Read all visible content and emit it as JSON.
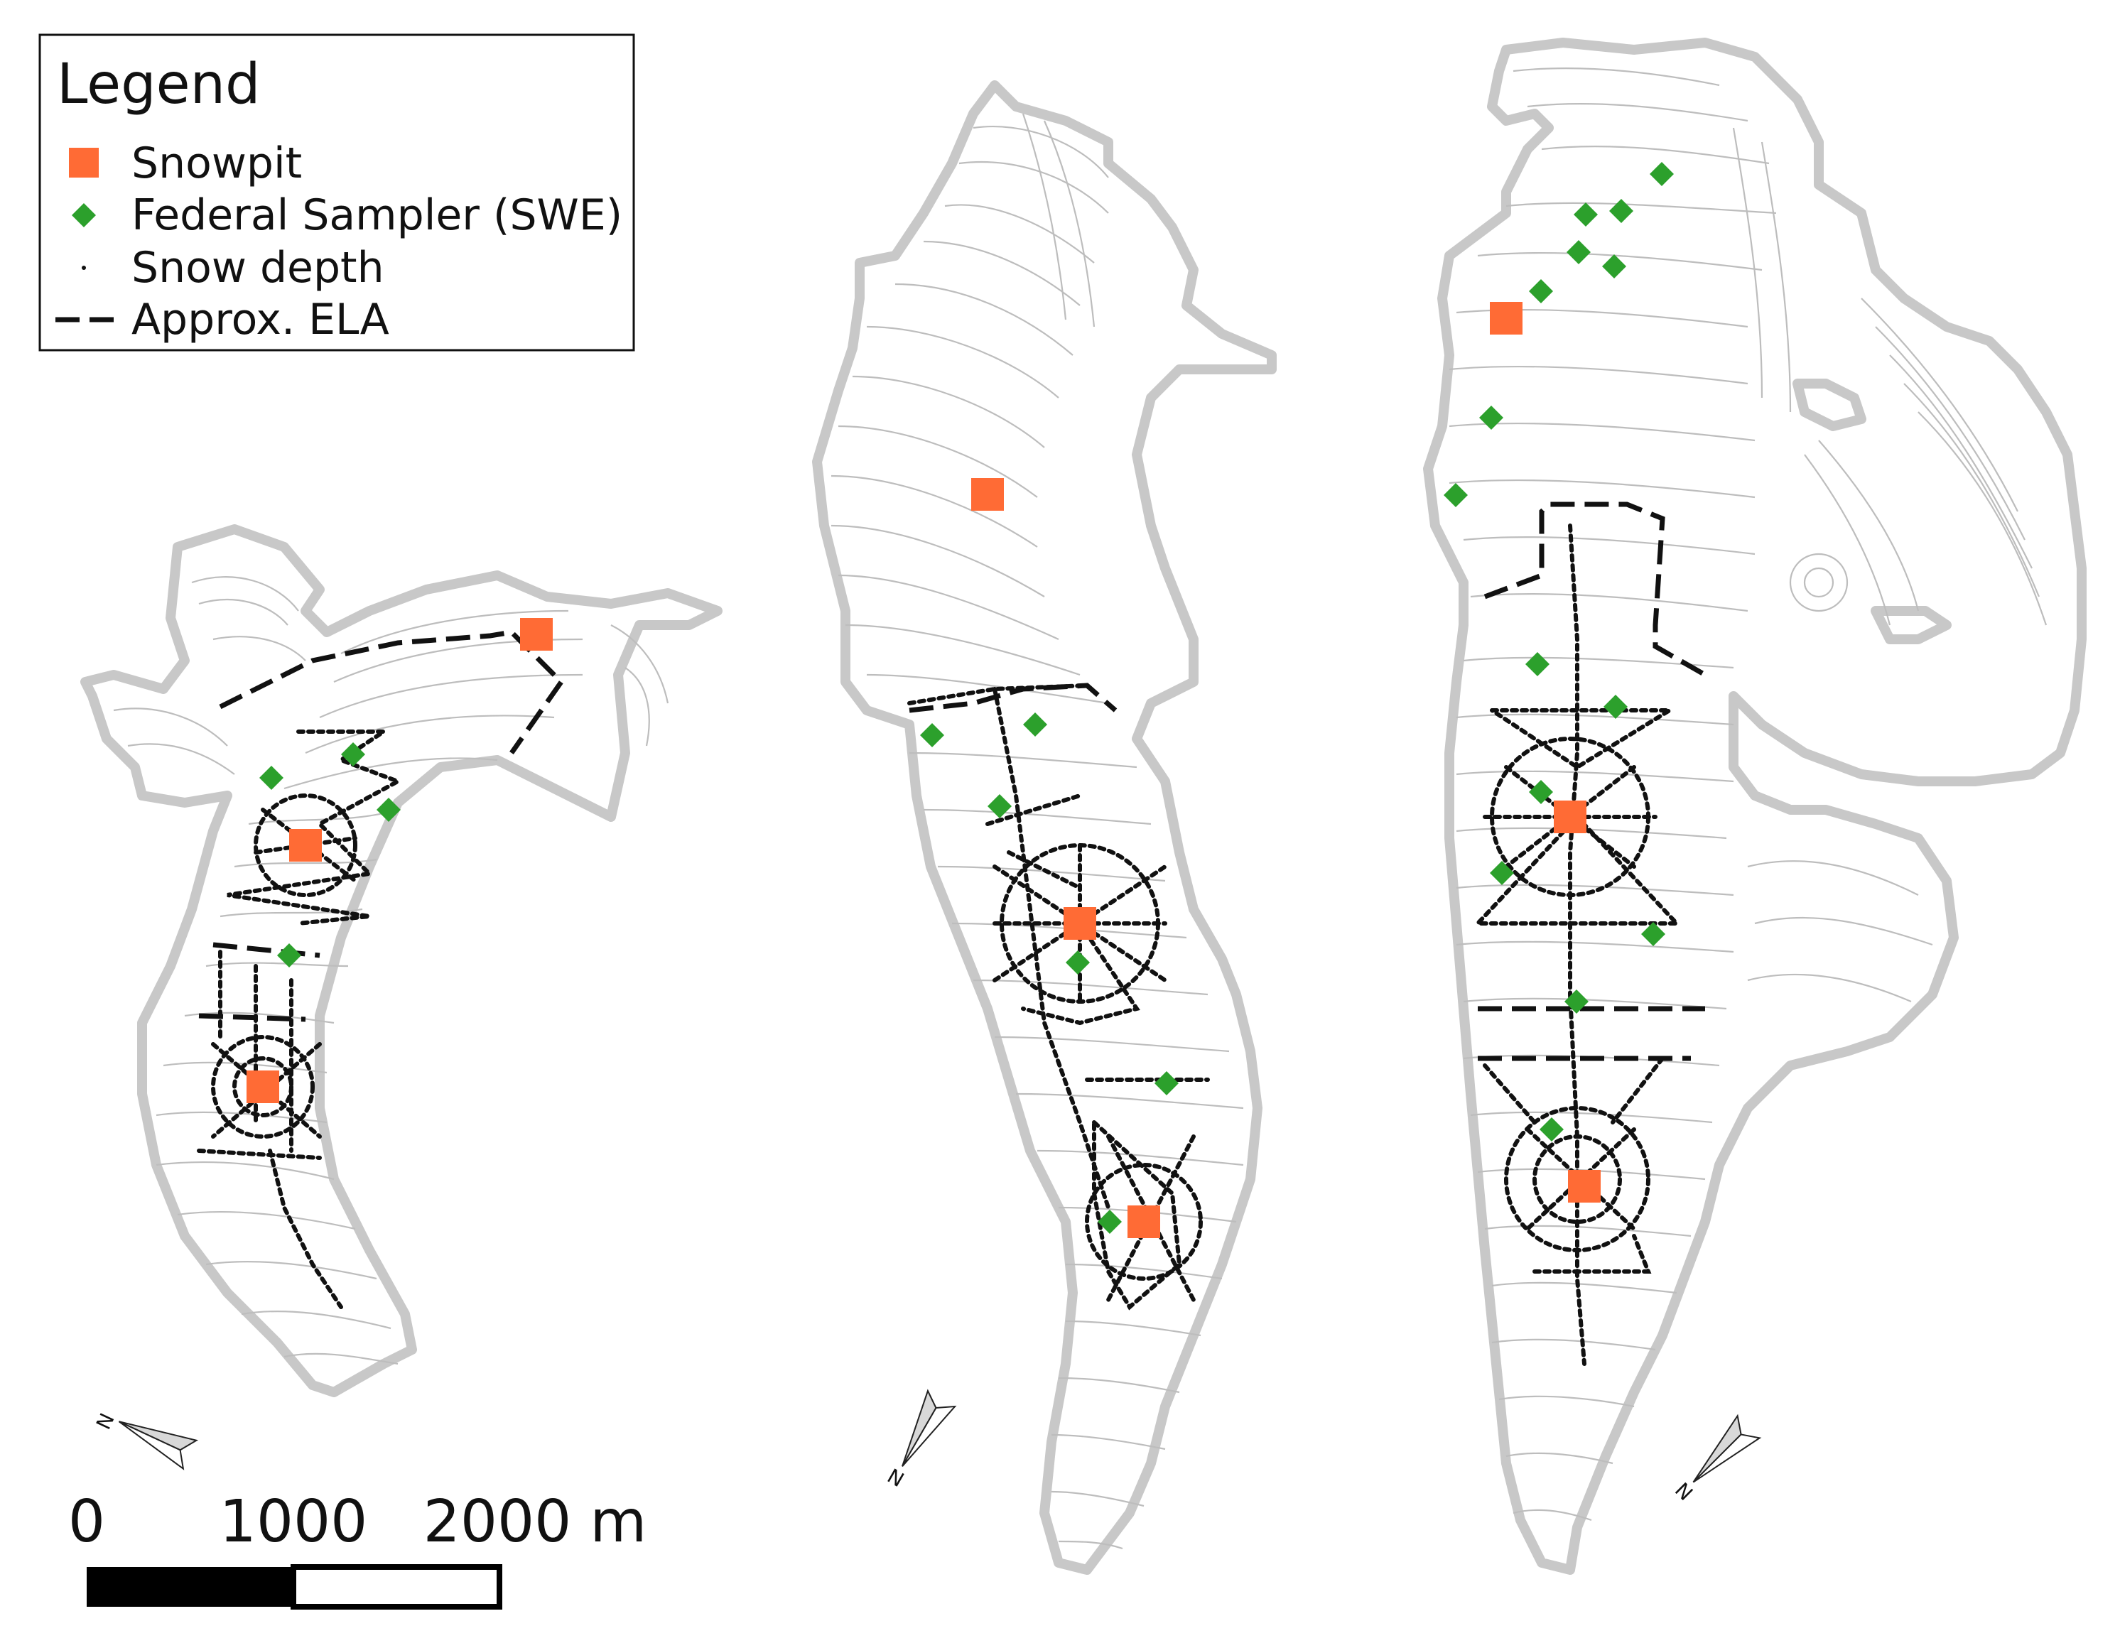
{
  "legend": {
    "title": "Legend",
    "items": [
      {
        "label": "Snowpit",
        "symbol": "snowpit-square"
      },
      {
        "label": "Federal Sampler (SWE)",
        "symbol": "sampler-diamond"
      },
      {
        "label": "Snow depth",
        "symbol": "snow-depth-dot"
      },
      {
        "label": "Approx. ELA",
        "symbol": "ela-dashed-line"
      }
    ]
  },
  "scale_bar": {
    "labels": [
      "0",
      "1000",
      "2000 m"
    ]
  },
  "north_arrow": {
    "label": "N",
    "icon": "north-arrow-icon"
  },
  "colors": {
    "snowpit": "#ff6b35",
    "sampler": "#2ca02c",
    "glacier_outline": "#c8c8c8",
    "contour": "#bdbdbd",
    "survey_line": "#111111"
  }
}
